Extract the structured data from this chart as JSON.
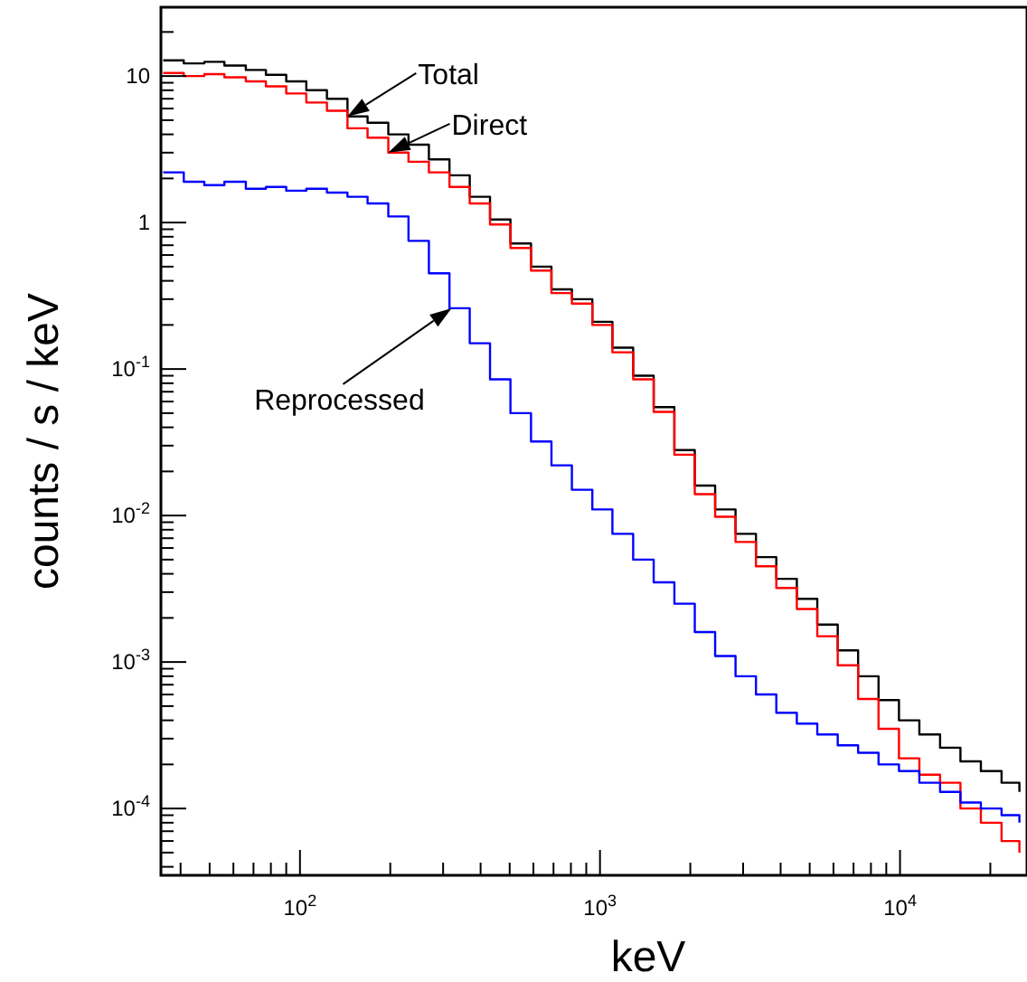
{
  "chart_data": {
    "type": "step",
    "xlabel": "keV",
    "ylabel": "counts / s / keV",
    "log": "xy",
    "grid": false,
    "xlim": [
      34.4,
      26500
    ],
    "ylim": [
      3.5e-05,
      29.5
    ],
    "xticks": [
      {
        "value": 40,
        "label": null
      },
      {
        "value": 50,
        "label": null
      },
      {
        "value": 60,
        "label": null
      },
      {
        "value": 70,
        "label": null
      },
      {
        "value": 80,
        "label": null
      },
      {
        "value": 90,
        "label": null
      },
      {
        "value": 100,
        "label": "10$^{2}$"
      },
      {
        "value": 200,
        "label": null
      },
      {
        "value": 300,
        "label": null
      },
      {
        "value": 400,
        "label": null
      },
      {
        "value": 500,
        "label": null
      },
      {
        "value": 600,
        "label": null
      },
      {
        "value": 700,
        "label": null
      },
      {
        "value": 800,
        "label": null
      },
      {
        "value": 900,
        "label": null
      },
      {
        "value": 1000,
        "label": "10$^{3}$"
      },
      {
        "value": 2000,
        "label": null
      },
      {
        "value": 3000,
        "label": null
      },
      {
        "value": 4000,
        "label": null
      },
      {
        "value": 5000,
        "label": null
      },
      {
        "value": 6000,
        "label": null
      },
      {
        "value": 7000,
        "label": null
      },
      {
        "value": 8000,
        "label": null
      },
      {
        "value": 9000,
        "label": null
      },
      {
        "value": 10000,
        "label": "10$^{4}$"
      },
      {
        "value": 20000,
        "label": null
      }
    ],
    "yticks": [
      {
        "value": 4e-05,
        "label": null
      },
      {
        "value": 5e-05,
        "label": null
      },
      {
        "value": 6e-05,
        "label": null
      },
      {
        "value": 7e-05,
        "label": null
      },
      {
        "value": 8e-05,
        "label": null
      },
      {
        "value": 9e-05,
        "label": null
      },
      {
        "value": 0.0001,
        "label": "10$^{-4}$"
      },
      {
        "value": 0.0002,
        "label": null
      },
      {
        "value": 0.0003,
        "label": null
      },
      {
        "value": 0.0004,
        "label": null
      },
      {
        "value": 0.0005,
        "label": null
      },
      {
        "value": 0.0006,
        "label": null
      },
      {
        "value": 0.0007,
        "label": null
      },
      {
        "value": 0.0008,
        "label": null
      },
      {
        "value": 0.0009,
        "label": null
      },
      {
        "value": 0.001,
        "label": "10$^{-3}$"
      },
      {
        "value": 0.002,
        "label": null
      },
      {
        "value": 0.003,
        "label": null
      },
      {
        "value": 0.004,
        "label": null
      },
      {
        "value": 0.005,
        "label": null
      },
      {
        "value": 0.006,
        "label": null
      },
      {
        "value": 0.007,
        "label": null
      },
      {
        "value": 0.008,
        "label": null
      },
      {
        "value": 0.009,
        "label": null
      },
      {
        "value": 0.01,
        "label": "10$^{-2}$"
      },
      {
        "value": 0.02,
        "label": null
      },
      {
        "value": 0.03,
        "label": null
      },
      {
        "value": 0.04,
        "label": null
      },
      {
        "value": 0.05,
        "label": null
      },
      {
        "value": 0.06,
        "label": null
      },
      {
        "value": 0.07,
        "label": null
      },
      {
        "value": 0.08,
        "label": null
      },
      {
        "value": 0.09,
        "label": null
      },
      {
        "value": 0.1,
        "label": "10$^{-1}$"
      },
      {
        "value": 0.2,
        "label": null
      },
      {
        "value": 0.3,
        "label": null
      },
      {
        "value": 0.4,
        "label": null
      },
      {
        "value": 0.5,
        "label": null
      },
      {
        "value": 0.6,
        "label": null
      },
      {
        "value": 0.7,
        "label": null
      },
      {
        "value": 0.8,
        "label": null
      },
      {
        "value": 0.9,
        "label": null
      },
      1,
      {
        "value": 2,
        "label": null
      },
      {
        "value": 3,
        "label": null
      },
      {
        "value": 4,
        "label": null
      },
      {
        "value": 5,
        "label": null
      },
      {
        "value": 6,
        "label": null
      },
      {
        "value": 7,
        "label": null
      },
      {
        "value": 8,
        "label": null
      },
      {
        "value": 9,
        "label": null
      },
      10,
      {
        "value": 20,
        "label": null
      }
    ],
    "x": [
      35,
      41,
      48,
      56,
      66,
      77,
      90,
      105,
      123,
      144,
      168,
      197,
      230,
      269,
      315,
      368,
      430,
      503,
      589,
      689,
      806,
      943,
      1100,
      1290,
      1510,
      1770,
      2070,
      2420,
      2830,
      3310,
      3870,
      4530,
      5300,
      6200,
      7250,
      8480,
      9920,
      11600,
      13600,
      15900,
      18600,
      21800,
      25000
    ],
    "series": [
      {
        "color": "#000000",
        "values": [
          12.8,
          12.2,
          12.5,
          11.8,
          11,
          10.2,
          9.2,
          8.0,
          7.0,
          5.3,
          4.8,
          4.0,
          3.4,
          2.7,
          2.1,
          1.5,
          1.05,
          0.72,
          0.5,
          0.35,
          0.3,
          0.21,
          0.14,
          0.09,
          0.055,
          0.028,
          0.016,
          0.011,
          0.0075,
          0.0052,
          0.0037,
          0.0027,
          0.0018,
          0.0012,
          0.0008,
          0.00055,
          0.0004,
          0.00032,
          0.00026,
          0.00021,
          0.00018,
          0.00015,
          0.00013
        ]
      },
      {
        "color": "#ff0000",
        "values": [
          10.5,
          10,
          10.3,
          9.8,
          9.2,
          8.5,
          7.6,
          6.6,
          5.8,
          4.4,
          3.8,
          3.0,
          2.6,
          2.2,
          1.75,
          1.35,
          0.97,
          0.67,
          0.47,
          0.33,
          0.28,
          0.2,
          0.13,
          0.085,
          0.051,
          0.026,
          0.014,
          0.0098,
          0.0066,
          0.0045,
          0.0032,
          0.0023,
          0.0015,
          0.00095,
          0.00056,
          0.00035,
          0.00022,
          0.00017,
          0.00015,
          0.0001,
          8e-05,
          6e-05,
          5e-05
        ]
      },
      {
        "color": "#0000ff",
        "values": [
          2.2,
          1.9,
          1.8,
          1.9,
          1.7,
          1.75,
          1.65,
          1.7,
          1.6,
          1.5,
          1.35,
          1.1,
          0.75,
          0.45,
          0.26,
          0.15,
          0.085,
          0.05,
          0.032,
          0.022,
          0.015,
          0.011,
          0.0075,
          0.005,
          0.0035,
          0.0025,
          0.0016,
          0.0011,
          0.0008,
          0.0006,
          0.00045,
          0.00038,
          0.00032,
          0.00027,
          0.00024,
          0.0002,
          0.00018,
          0.00015,
          0.00013,
          0.00011,
          0.0001,
          9e-05,
          8e-05
        ]
      }
    ],
    "annotations": [
      {
        "text": "Total",
        "x": 144,
        "y": 5.3
      },
      {
        "text": "Direct",
        "x": 197,
        "y": 3.0
      },
      {
        "text": "Reprocessed",
        "x": 320,
        "y": 0.26
      }
    ]
  }
}
